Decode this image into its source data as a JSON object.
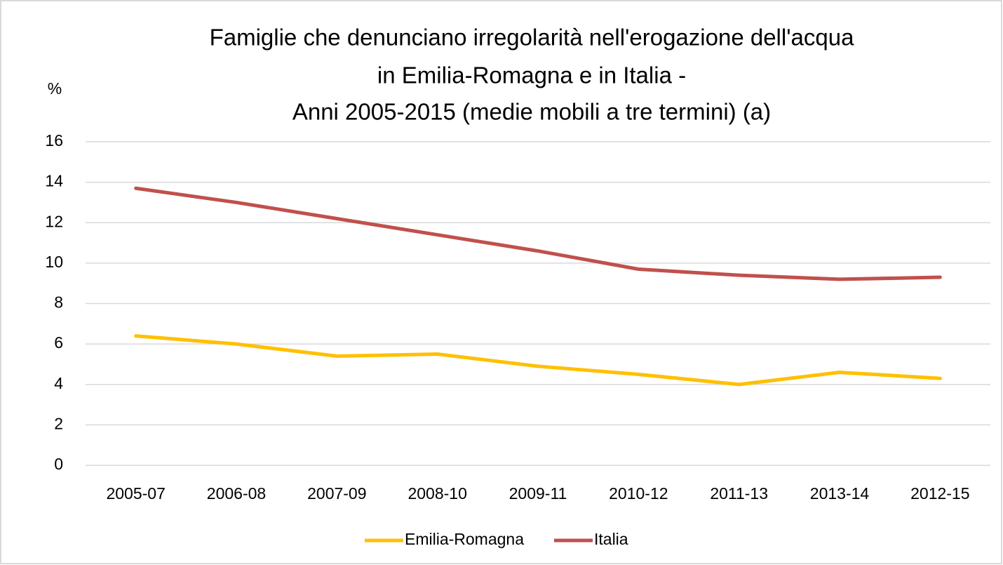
{
  "chart_data": {
    "type": "line",
    "title": [
      "Famiglie che denunciano irregolarità nell'erogazione dell'acqua",
      "in Emilia-Romagna e in Italia -",
      "Anni 2005-2015 (medie mobili a tre termini) (a)"
    ],
    "ylabel": "%",
    "categories": [
      "2005-07",
      "2006-08",
      "2007-09",
      "2008-10",
      "2009-11",
      "2010-12",
      "2011-13",
      "2013-14",
      "2012-15"
    ],
    "series": [
      {
        "name": "Emilia-Romagna",
        "color": "#ffc000",
        "values": [
          6.4,
          6.0,
          5.4,
          5.5,
          4.9,
          4.5,
          4.0,
          4.6,
          4.3
        ]
      },
      {
        "name": "Italia",
        "color": "#c0504d",
        "values": [
          13.7,
          13.0,
          12.2,
          11.4,
          10.6,
          9.7,
          9.4,
          9.2,
          9.3
        ]
      }
    ],
    "ylim": [
      0,
      16
    ],
    "yticks": [
      0,
      2,
      4,
      6,
      8,
      10,
      12,
      14,
      16
    ],
    "grid": true,
    "legend": "bottom"
  }
}
